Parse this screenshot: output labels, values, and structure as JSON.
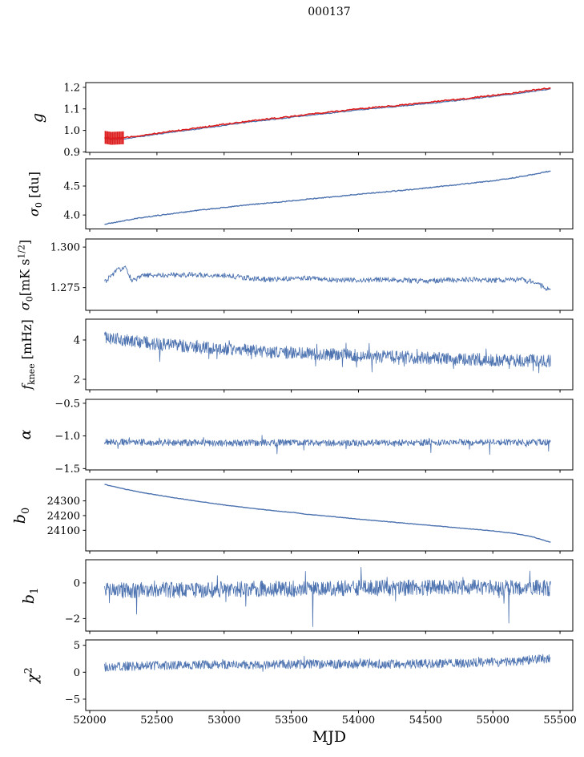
{
  "chart_data": {
    "type": "line",
    "title": "000137",
    "xlabel": "MJD",
    "grid": false,
    "legend": "none",
    "x_axis": {
      "lim": [
        51970,
        55595
      ],
      "ticks": [
        52000,
        52500,
        53000,
        53500,
        54000,
        54500,
        55000,
        55500
      ],
      "tick_labels": [
        "52000",
        "52500",
        "53000",
        "53500",
        "54000",
        "54500",
        "55000",
        "55500"
      ],
      "data_range": [
        52110,
        55430
      ]
    },
    "colors": {
      "blue": "#4c72b0",
      "red": "#dd1d1d",
      "frame": "#000000",
      "text": "#000000"
    },
    "panels": [
      {
        "name": "g",
        "ylabel_text": "g",
        "ylabel_parts": [
          {
            "t": "g",
            "i": true
          }
        ],
        "ylim": [
          0.898,
          1.222
        ],
        "ytick_vals": [
          0.9,
          1.0,
          1.1,
          1.2
        ],
        "ytick_labels": [
          "0.9",
          "1.0",
          "1.1",
          "1.2"
        ],
        "series": [
          {
            "name": "g-fit-blue",
            "color": "#4c72b0",
            "width": 1.2,
            "seed": 11,
            "n": 350,
            "noise": 0.002,
            "keypoints": [
              [
                52110,
                0.963
              ],
              [
                52160,
                0.958
              ],
              [
                52260,
                0.961
              ],
              [
                52400,
                0.973
              ],
              [
                52600,
                0.991
              ],
              [
                52800,
                1.006
              ],
              [
                53000,
                1.023
              ],
              [
                53200,
                1.04
              ],
              [
                53400,
                1.053
              ],
              [
                53600,
                1.068
              ],
              [
                53800,
                1.081
              ],
              [
                54000,
                1.095
              ],
              [
                54200,
                1.106
              ],
              [
                54400,
                1.118
              ],
              [
                54600,
                1.13
              ],
              [
                54800,
                1.143
              ],
              [
                55000,
                1.158
              ],
              [
                55150,
                1.168
              ],
              [
                55300,
                1.182
              ],
              [
                55430,
                1.192
              ]
            ]
          },
          {
            "name": "g-meas-red",
            "color": "#dd1d1d",
            "width": 1.6,
            "seed": 12,
            "n": 350,
            "noise": 0.003,
            "keypoints": [
              [
                52110,
                0.968
              ],
              [
                52160,
                0.963
              ],
              [
                52260,
                0.966
              ],
              [
                52400,
                0.978
              ],
              [
                52600,
                0.996
              ],
              [
                52800,
                1.011
              ],
              [
                53000,
                1.028
              ],
              [
                53200,
                1.045
              ],
              [
                53400,
                1.058
              ],
              [
                53600,
                1.073
              ],
              [
                53800,
                1.086
              ],
              [
                54000,
                1.1
              ],
              [
                54200,
                1.111
              ],
              [
                54400,
                1.123
              ],
              [
                54600,
                1.135
              ],
              [
                54800,
                1.148
              ],
              [
                55000,
                1.163
              ],
              [
                55150,
                1.173
              ],
              [
                55300,
                1.187
              ],
              [
                55430,
                1.197
              ]
            ],
            "errorbars": {
              "x_start": 52115,
              "x_end": 52250,
              "count": 16,
              "yerr": 0.03
            }
          }
        ]
      },
      {
        "name": "sigma0_du",
        "ylabel_text": "sigma_0 [du]",
        "ylabel_parts": [
          {
            "t": "σ",
            "i": true
          },
          {
            "t": "0",
            "pos": "sub"
          },
          {
            "t": " [du]"
          }
        ],
        "ylim": [
          3.76,
          4.97
        ],
        "ytick_vals": [
          4.0,
          4.5
        ],
        "ytick_labels": [
          "4.0",
          "4.5"
        ],
        "series": [
          {
            "name": "sigma0-du",
            "color": "#4c72b0",
            "width": 1.4,
            "seed": 21,
            "n": 550,
            "noise": 0.008,
            "keypoints": [
              [
                52110,
                3.84
              ],
              [
                52250,
                3.9
              ],
              [
                52400,
                3.96
              ],
              [
                52600,
                4.02
              ],
              [
                52800,
                4.08
              ],
              [
                53000,
                4.13
              ],
              [
                53200,
                4.18
              ],
              [
                53400,
                4.22
              ],
              [
                53600,
                4.27
              ],
              [
                53800,
                4.31
              ],
              [
                54000,
                4.36
              ],
              [
                54200,
                4.4
              ],
              [
                54400,
                4.44
              ],
              [
                54600,
                4.49
              ],
              [
                54800,
                4.54
              ],
              [
                55000,
                4.59
              ],
              [
                55150,
                4.64
              ],
              [
                55300,
                4.7
              ],
              [
                55430,
                4.76
              ]
            ]
          }
        ]
      },
      {
        "name": "sigma0_mK",
        "ylabel_text": "sigma_0 [mK s^1/2]",
        "ylabel_parts": [
          {
            "t": "σ",
            "i": true
          },
          {
            "t": "0",
            "pos": "sub"
          },
          {
            "t": "[mK s"
          },
          {
            "t": "1/2",
            "pos": "sup"
          },
          {
            "t": "]"
          }
        ],
        "ylim": [
          1.261,
          1.305
        ],
        "ytick_vals": [
          1.275,
          1.3
        ],
        "ytick_labels": [
          "1.275",
          "1.300"
        ],
        "series": [
          {
            "name": "sigma0-mK",
            "color": "#4c72b0",
            "width": 0.9,
            "seed": 31,
            "n": 750,
            "noise": 0.0016,
            "keypoints": [
              [
                52110,
                1.2785
              ],
              [
                52200,
                1.2855
              ],
              [
                52260,
                1.2875
              ],
              [
                52320,
                1.279
              ],
              [
                52400,
                1.2825
              ],
              [
                52700,
                1.283
              ],
              [
                53000,
                1.2825
              ],
              [
                53300,
                1.28
              ],
              [
                53600,
                1.281
              ],
              [
                53900,
                1.2795
              ],
              [
                54200,
                1.28
              ],
              [
                54500,
                1.279
              ],
              [
                54800,
                1.28
              ],
              [
                55000,
                1.2795
              ],
              [
                55200,
                1.28
              ],
              [
                55320,
                1.278
              ],
              [
                55430,
                1.273
              ]
            ]
          }
        ]
      },
      {
        "name": "f_knee",
        "ylabel_text": "f_knee [mHz]",
        "ylabel_parts": [
          {
            "t": "f",
            "i": true
          },
          {
            "t": "knee",
            "pos": "sub"
          },
          {
            "t": " [mHz]"
          }
        ],
        "ylim": [
          1.47,
          5.06
        ],
        "ytick_vals": [
          2,
          4
        ],
        "ytick_labels": [
          "2",
          "4"
        ],
        "series": [
          {
            "name": "f-knee",
            "color": "#4c72b0",
            "width": 0.8,
            "seed": 41,
            "n": 1100,
            "noise": 0.33,
            "spike_noise": {
              "p": 0.03,
              "amp": 0.8
            },
            "keypoints": [
              [
                52110,
                4.15
              ],
              [
                52300,
                3.95
              ],
              [
                52500,
                3.8
              ],
              [
                52800,
                3.62
              ],
              [
                53100,
                3.5
              ],
              [
                53400,
                3.38
              ],
              [
                53700,
                3.28
              ],
              [
                54000,
                3.22
              ],
              [
                54300,
                3.12
              ],
              [
                54600,
                3.06
              ],
              [
                54900,
                3.0
              ],
              [
                55200,
                2.95
              ],
              [
                55430,
                2.92
              ]
            ]
          }
        ]
      },
      {
        "name": "alpha",
        "ylabel_text": "alpha",
        "ylabel_parts": [
          {
            "t": "α",
            "i": true
          }
        ],
        "ylim": [
          -1.52,
          -0.44
        ],
        "ytick_vals": [
          -1.5,
          -1.0,
          -0.5
        ],
        "ytick_labels": [
          "−1.5",
          "−1.0",
          "−0.5"
        ],
        "series": [
          {
            "name": "alpha",
            "color": "#4c72b0",
            "width": 0.8,
            "seed": 51,
            "n": 1100,
            "noise": 0.05,
            "spike_noise": {
              "p": 0.02,
              "amp": 0.14
            },
            "keypoints": [
              [
                52110,
                -1.09
              ],
              [
                52500,
                -1.1
              ],
              [
                53000,
                -1.11
              ],
              [
                53500,
                -1.1
              ],
              [
                54000,
                -1.11
              ],
              [
                54500,
                -1.1
              ],
              [
                55000,
                -1.1
              ],
              [
                55430,
                -1.1
              ]
            ]
          }
        ]
      },
      {
        "name": "b0",
        "ylabel_text": "b_0",
        "ylabel_parts": [
          {
            "t": "b",
            "i": true
          },
          {
            "t": "0",
            "pos": "sub"
          }
        ],
        "ylim": [
          23960,
          24445
        ],
        "ytick_vals": [
          24100,
          24200,
          24300
        ],
        "ytick_labels": [
          "24100",
          "24200",
          "24300"
        ],
        "series": [
          {
            "name": "b0",
            "color": "#4c72b0",
            "width": 1.4,
            "seed": 61,
            "n": 500,
            "noise": 1.5,
            "keypoints": [
              [
                52110,
                24412
              ],
              [
                52250,
                24382
              ],
              [
                52400,
                24355
              ],
              [
                52600,
                24325
              ],
              [
                52800,
                24298
              ],
              [
                53000,
                24272
              ],
              [
                53200,
                24250
              ],
              [
                53400,
                24230
              ],
              [
                53550,
                24218
              ],
              [
                53600,
                24210
              ],
              [
                53800,
                24194
              ],
              [
                54000,
                24176
              ],
              [
                54200,
                24160
              ],
              [
                54400,
                24144
              ],
              [
                54600,
                24128
              ],
              [
                54800,
                24112
              ],
              [
                55000,
                24096
              ],
              [
                55150,
                24080
              ],
              [
                55300,
                24055
              ],
              [
                55430,
                24018
              ]
            ]
          }
        ]
      },
      {
        "name": "b1",
        "ylabel_text": "b_1",
        "ylabel_parts": [
          {
            "t": "b",
            "i": true
          },
          {
            "t": "1",
            "pos": "sub"
          }
        ],
        "ylim": [
          -2.7,
          1.3
        ],
        "ytick_vals": [
          -2,
          0
        ],
        "ytick_labels": [
          "−2",
          "0"
        ],
        "series": [
          {
            "name": "b1",
            "color": "#4c72b0",
            "width": 0.8,
            "seed": 71,
            "n": 1100,
            "noise": 0.45,
            "spike_noise": {
              "p": 0.02,
              "amp": 0.75
            },
            "spikes": [
              [
                52350,
                -1.75
              ],
              [
                53660,
                -2.45
              ],
              [
                55120,
                -2.25
              ]
            ],
            "keypoints": [
              [
                52110,
                -0.42
              ],
              [
                52600,
                -0.4
              ],
              [
                53100,
                -0.35
              ],
              [
                53600,
                -0.32
              ],
              [
                54100,
                -0.28
              ],
              [
                54600,
                -0.25
              ],
              [
                55100,
                -0.25
              ],
              [
                55430,
                -0.3
              ]
            ]
          }
        ]
      },
      {
        "name": "chi2",
        "ylabel_text": "chi^2",
        "ylabel_parts": [
          {
            "t": "χ",
            "i": true
          },
          {
            "t": "2",
            "pos": "sup"
          }
        ],
        "ylim": [
          -7.1,
          6.0
        ],
        "ytick_vals": [
          -5,
          0,
          5
        ],
        "ytick_labels": [
          "−5",
          "0",
          "5"
        ],
        "series": [
          {
            "name": "chi2",
            "color": "#4c72b0",
            "width": 0.8,
            "seed": 81,
            "n": 1100,
            "noise": 0.85,
            "spike_noise": {
              "p": 0.03,
              "amp": 0.9
            },
            "keypoints": [
              [
                52110,
                1.0
              ],
              [
                52600,
                1.3
              ],
              [
                53100,
                1.4
              ],
              [
                53600,
                1.5
              ],
              [
                54100,
                1.5
              ],
              [
                54600,
                1.6
              ],
              [
                55100,
                1.9
              ],
              [
                55430,
                2.6
              ]
            ]
          }
        ]
      }
    ]
  }
}
